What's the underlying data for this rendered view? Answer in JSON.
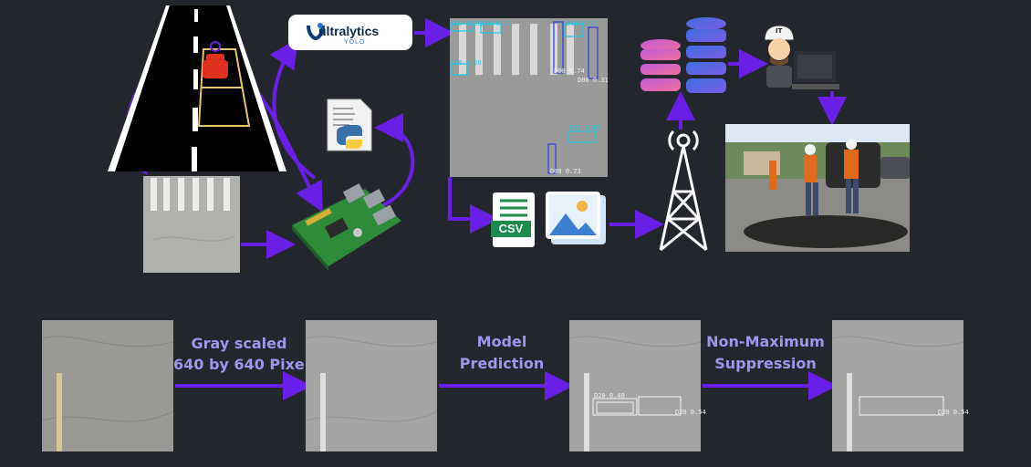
{
  "top_pipeline": {
    "ultralytics_logo": {
      "name": "ultralytics",
      "sub": "YOLO"
    },
    "csv_icon": {
      "label": "CSV"
    },
    "detections": [
      "D10 0.50",
      "D10 0.58",
      "D10 0.78",
      "D10 0.26",
      "D00 0.74",
      "D00 0.31",
      "D10 0.62",
      "D00 0.73"
    ],
    "worker_helmet": "IT"
  },
  "bottom_pipeline": {
    "step1": {
      "line1": "Gray scaled",
      "line2": "640 by 640 Pixels"
    },
    "step2": {
      "line1": "Model",
      "line2": "Prediction"
    },
    "step3": {
      "line1": "Non-Maximum",
      "line2": "Suppression"
    },
    "pred_labels": [
      "D20 0.40",
      "D20 0.54"
    ],
    "nms_label": "D20 0.54"
  },
  "colors": {
    "background": "#24262e",
    "arrow": "#6a1fe6",
    "label_text": "#9d97ee",
    "bbox_cyan": "#1ec8e6",
    "bbox_blue": "#2b3fe0"
  },
  "icons": [
    "road-camera-icon",
    "raspberry-pi-icon",
    "python-file-icon",
    "ultralytics-yolo-logo",
    "csv-icon",
    "image-icon",
    "radio-tower-icon",
    "database-icon",
    "engineer-at-computer-icon",
    "road-repair-photo"
  ]
}
